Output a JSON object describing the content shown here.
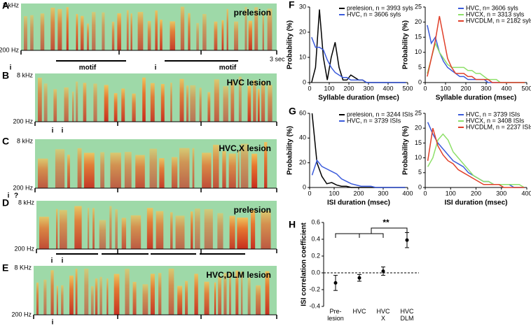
{
  "spectrograms": [
    {
      "panel": "A",
      "title": "prelesion",
      "freq_top": "8 kHz",
      "freq_bottom": "200 Hz",
      "time_label": "3 sec",
      "annotations": [
        "i",
        "motif",
        "i",
        "motif"
      ]
    },
    {
      "panel": "B",
      "title": "HVC lesion",
      "freq_top": "8 kHz",
      "freq_bottom": "200 Hz",
      "annotations": [
        "i",
        "i"
      ]
    },
    {
      "panel": "C",
      "title": "HVC,X lesion",
      "freq_top": "8 kHz",
      "freq_bottom": "200 Hz",
      "annotations": [
        "i",
        "?"
      ]
    },
    {
      "panel": "D",
      "title": "prelesion",
      "freq_top": "8 kHz",
      "freq_bottom": "200 Hz",
      "annotations": [
        "i",
        "i"
      ]
    },
    {
      "panel": "E",
      "title": "HVC,DLM lesion",
      "freq_top": "8 KHz",
      "freq_bottom": "200 Hz",
      "annotations": [
        "i"
      ]
    }
  ],
  "chart_data": [
    {
      "type": "line",
      "panel": "F",
      "xlabel": "Syllable duration (msec)",
      "ylabel": "Probability (%)",
      "legend": "upper right",
      "x": [
        10,
        30,
        50,
        70,
        90,
        110,
        130,
        150,
        170,
        190,
        210,
        230,
        250,
        270,
        290,
        310,
        330,
        350,
        370,
        390,
        410,
        430,
        450,
        470,
        490
      ],
      "xlim": [
        0,
        500
      ],
      "xticks": [
        0,
        100,
        200,
        300,
        400,
        500
      ],
      "ylim": [
        0,
        30
      ],
      "yticks": [
        0,
        10,
        20,
        30
      ],
      "series": [
        {
          "name": "prelesion, n = 3993 syls",
          "color": "#000000",
          "values": [
            0,
            6,
            29,
            10,
            1,
            10,
            16,
            6,
            1,
            1,
            3,
            2,
            1,
            1,
            0,
            0,
            0,
            0,
            0,
            0,
            0,
            0,
            0,
            0,
            0
          ]
        },
        {
          "name": "HVC, n = 3606 syls",
          "color": "#3b5bdb",
          "values": [
            18,
            14,
            14,
            13,
            9,
            6,
            4,
            3,
            2,
            2,
            1,
            1,
            1,
            1,
            0,
            0,
            0,
            0,
            0,
            0,
            0,
            0,
            0,
            0,
            0
          ]
        }
      ]
    },
    {
      "type": "line",
      "xlabel": "Syllable duration (msec)",
      "ylabel": "Probability (%)",
      "legend": "upper right",
      "x": [
        10,
        30,
        50,
        70,
        90,
        110,
        130,
        150,
        170,
        190,
        210,
        230,
        250,
        270,
        290,
        310,
        330,
        350,
        370,
        390,
        410,
        430,
        450,
        470,
        490
      ],
      "xlim": [
        0,
        500
      ],
      "xticks": [
        0,
        100,
        200,
        300,
        400,
        500
      ],
      "ylim": [
        0,
        25
      ],
      "yticks": [
        0,
        5,
        10,
        15,
        20,
        25
      ],
      "series": [
        {
          "name": "HVC, n= 3606 syls",
          "color": "#3b5bdb",
          "values": [
            19,
            13,
            15,
            10,
            7,
            5,
            4,
            3,
            2,
            2,
            1,
            1,
            1,
            1,
            1,
            0,
            0,
            0,
            0,
            0,
            0,
            0,
            0,
            0,
            0
          ]
        },
        {
          "name": "HVCX, n = 3313 syls",
          "color": "#8ee06a",
          "values": [
            3,
            8,
            13,
            10,
            8,
            6,
            5,
            5,
            5,
            5,
            4,
            4,
            3,
            3,
            2,
            1,
            1,
            1,
            0,
            0,
            0,
            0,
            0,
            0,
            0
          ]
        },
        {
          "name": "HVCDLM, n = 2182 syls",
          "color": "#e0402a",
          "values": [
            2,
            8,
            14,
            22,
            15,
            8,
            5,
            3,
            3,
            3,
            2,
            2,
            1,
            1,
            1,
            1,
            0,
            0,
            0,
            0,
            0,
            0,
            0,
            0,
            0
          ]
        }
      ]
    },
    {
      "type": "line",
      "panel": "G",
      "xlabel": "ISI duration (msec)",
      "ylabel": "Probability (%)",
      "legend": "upper right",
      "x": [
        10,
        30,
        50,
        70,
        90,
        110,
        130,
        150,
        170,
        190,
        210,
        230,
        250,
        270,
        290,
        310,
        330,
        350,
        370,
        390
      ],
      "xlim": [
        0,
        400
      ],
      "xticks": [
        0,
        100,
        200,
        300,
        400
      ],
      "ylim": [
        0,
        60
      ],
      "yticks": [
        0,
        20,
        40,
        60
      ],
      "series": [
        {
          "name": "prelesion, n = 3244 ISIs",
          "color": "#000000",
          "values": [
            60,
            20,
            9,
            3,
            4,
            2,
            1,
            1,
            0,
            0,
            0,
            0,
            0,
            0,
            0,
            0,
            0,
            0,
            0,
            0
          ]
        },
        {
          "name": "HVC, n = 3739 ISIs",
          "color": "#3b5bdb",
          "values": [
            10,
            22,
            17,
            15,
            13,
            11,
            7,
            5,
            3,
            2,
            1,
            1,
            1,
            0,
            0,
            0,
            0,
            0,
            0,
            0
          ]
        }
      ]
    },
    {
      "type": "line",
      "xlabel": "ISI duration (msec)",
      "ylabel": "Probability (%)",
      "legend": "upper right",
      "x": [
        10,
        30,
        50,
        70,
        90,
        110,
        130,
        150,
        170,
        190,
        210,
        230,
        250,
        270,
        290,
        310,
        330,
        350,
        370,
        390
      ],
      "xlim": [
        0,
        400
      ],
      "xticks": [
        0,
        100,
        200,
        300,
        400
      ],
      "ylim": [
        0,
        25
      ],
      "yticks": [
        0,
        5,
        10,
        15,
        20,
        25
      ],
      "series": [
        {
          "name": "HVC, n = 3739 ISIs",
          "color": "#3b5bdb",
          "values": [
            22,
            18,
            15,
            13,
            11,
            9,
            8,
            7,
            5,
            4,
            3,
            2,
            2,
            1,
            1,
            1,
            1,
            0,
            0,
            0
          ]
        },
        {
          "name": "HVCX, n = 3408 ISIs",
          "color": "#8ee06a",
          "values": [
            7,
            10,
            16,
            18,
            16,
            12,
            10,
            8,
            6,
            4,
            3,
            2,
            2,
            1,
            1,
            1,
            1,
            1,
            1,
            0
          ]
        },
        {
          "name": "HVCDLM, n = 2237 ISIs",
          "color": "#e0402a",
          "values": [
            9,
            20,
            14,
            11,
            9,
            8,
            6,
            5,
            4,
            3,
            2,
            1,
            1,
            1,
            1,
            0,
            0,
            0,
            0,
            0
          ]
        }
      ]
    },
    {
      "type": "errorbar",
      "panel": "H",
      "ylabel": "ISI correlation coefficient",
      "annotation": "**",
      "categories": [
        "Pre- lesion",
        "HVC",
        "HVC X",
        "HVC DLM"
      ],
      "values": [
        -0.12,
        -0.06,
        0.02,
        0.39
      ],
      "errors": [
        0.09,
        0.04,
        0.05,
        0.09
      ],
      "color": "#000000",
      "ylim": [
        -0.4,
        0.6
      ],
      "yticks": [
        -0.4,
        -0.2,
        {
          "value": 0,
          "label": "0.0"
        },
        0.2,
        0.4,
        0.6
      ]
    }
  ]
}
